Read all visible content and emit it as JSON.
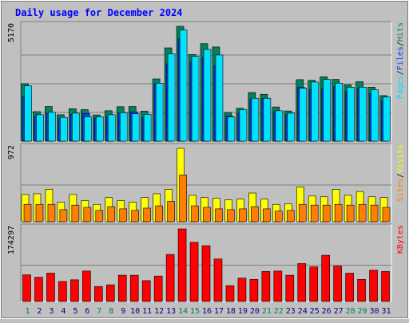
{
  "title": "Daily usage for December 2024",
  "colors": {
    "background": "#c0c0c0",
    "panel": "#c0c0c0",
    "grid": "#808080",
    "title": "#0000ff",
    "hits": "#00805c",
    "files": "#0040ff",
    "pages": "#00e0ff",
    "visits": "#ffff00",
    "sites": "#ff8000",
    "kbytes": "#ff0000",
    "weekend_day": "#00805c",
    "weekday": "#000080"
  },
  "chart_data": [
    {
      "type": "bar",
      "name": "hits-files-pages",
      "ymax_label": "5170",
      "ylim": [
        0,
        5170
      ],
      "legend": [
        "Pages",
        "/",
        "Files",
        "/",
        "Hits"
      ],
      "categories": [
        "1",
        "2",
        "3",
        "4",
        "5",
        "6",
        "7",
        "8",
        "9",
        "10",
        "11",
        "12",
        "13",
        "14",
        "15",
        "16",
        "17",
        "18",
        "19",
        "20",
        "21",
        "22",
        "23",
        "24",
        "25",
        "26",
        "27",
        "28",
        "29",
        "30",
        "31"
      ],
      "series": [
        {
          "name": "Hits",
          "values": [
            2590,
            1330,
            1560,
            1190,
            1460,
            1420,
            1180,
            1370,
            1550,
            1560,
            1350,
            2800,
            4200,
            5170,
            3900,
            4390,
            4240,
            1290,
            1480,
            2190,
            2110,
            1540,
            1360,
            2770,
            2740,
            2900,
            2780,
            2540,
            2680,
            2430,
            2050
          ]
        },
        {
          "name": "Files",
          "values": [
            1980,
            1130,
            1250,
            1020,
            1210,
            1250,
            1040,
            1090,
            1280,
            1320,
            1060,
            2580,
            3480,
            4600,
            3560,
            3770,
            3410,
            1120,
            1260,
            1890,
            1930,
            1330,
            1190,
            2420,
            2310,
            2350,
            2450,
            2230,
            2350,
            2140,
            1800
          ]
        },
        {
          "name": "Pages",
          "values": [
            2490,
            1190,
            1300,
            1070,
            1260,
            1100,
            1100,
            1190,
            1280,
            1230,
            1210,
            2610,
            3930,
            5000,
            3820,
            4130,
            3880,
            1090,
            1420,
            1930,
            1930,
            1370,
            1260,
            2390,
            2660,
            2780,
            2610,
            2430,
            2430,
            2310,
            1990
          ]
        }
      ]
    },
    {
      "type": "bar",
      "name": "visits-sites",
      "ymax_label": "972",
      "ylim": [
        0,
        972
      ],
      "legend": [
        "Sites",
        "/",
        "Visits"
      ],
      "categories": [
        "1",
        "2",
        "3",
        "4",
        "5",
        "6",
        "7",
        "8",
        "9",
        "10",
        "11",
        "12",
        "13",
        "14",
        "15",
        "16",
        "17",
        "18",
        "19",
        "20",
        "21",
        "22",
        "23",
        "24",
        "25",
        "26",
        "27",
        "28",
        "29",
        "30",
        "31"
      ],
      "series": [
        {
          "name": "Visits",
          "values": [
            360,
            370,
            430,
            260,
            360,
            280,
            230,
            320,
            280,
            260,
            320,
            370,
            430,
            972,
            350,
            320,
            310,
            290,
            300,
            380,
            300,
            230,
            240,
            460,
            340,
            330,
            430,
            350,
            400,
            330,
            320
          ]
        },
        {
          "name": "Sites",
          "values": [
            230,
            230,
            230,
            160,
            220,
            190,
            150,
            200,
            170,
            150,
            180,
            210,
            270,
            620,
            210,
            190,
            170,
            160,
            170,
            200,
            170,
            140,
            150,
            230,
            220,
            220,
            230,
            220,
            230,
            220,
            190
          ]
        }
      ]
    },
    {
      "type": "bar",
      "name": "kbytes",
      "ymax_label": "174297",
      "ylim": [
        0,
        174297
      ],
      "legend": [
        "KBytes"
      ],
      "categories": [
        "1",
        "2",
        "3",
        "4",
        "5",
        "6",
        "7",
        "8",
        "9",
        "10",
        "11",
        "12",
        "13",
        "14",
        "15",
        "16",
        "17",
        "18",
        "19",
        "20",
        "21",
        "22",
        "23",
        "24",
        "25",
        "26",
        "27",
        "28",
        "29",
        "30",
        "31"
      ],
      "series": [
        {
          "name": "KBytes",
          "values": [
            64000,
            58000,
            68000,
            48000,
            52000,
            73000,
            36000,
            40000,
            63000,
            63000,
            50000,
            61000,
            113000,
            174297,
            142000,
            134000,
            102000,
            38000,
            56000,
            53000,
            72000,
            73000,
            63000,
            91000,
            83000,
            111000,
            85000,
            68000,
            53000,
            75000,
            72000
          ]
        }
      ]
    }
  ],
  "days": {
    "labels": [
      "1",
      "2",
      "3",
      "4",
      "5",
      "6",
      "7",
      "8",
      "9",
      "10",
      "11",
      "12",
      "13",
      "14",
      "15",
      "16",
      "17",
      "18",
      "19",
      "20",
      "21",
      "22",
      "23",
      "24",
      "25",
      "26",
      "27",
      "28",
      "29",
      "30",
      "31"
    ],
    "weekend": [
      1,
      7,
      8,
      14,
      15,
      21,
      22,
      28,
      29
    ]
  }
}
